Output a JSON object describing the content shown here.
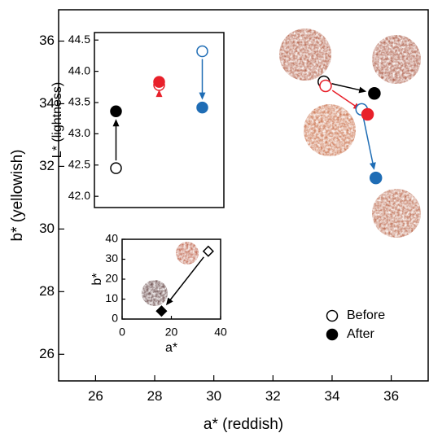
{
  "chart_data": [
    {
      "type": "scatter",
      "xlabel": "a* (reddish)",
      "ylabel": "b* (yellowish)",
      "xlim": [
        24.75,
        37.25
      ],
      "ylim": [
        25.15,
        37.0
      ],
      "xticks": [
        26,
        28,
        30,
        32,
        34,
        36
      ],
      "yticks": [
        26,
        28,
        30,
        32,
        34,
        36
      ],
      "marker": "circle",
      "arrows": true,
      "legend": "lower right",
      "series": [
        {
          "name": "Before",
          "color": "#000000",
          "filled": false,
          "point_colors": [
            "#000000",
            "#e8202a",
            "#1f6db5"
          ],
          "x": [
            33.72,
            33.78,
            35.0
          ],
          "values": [
            34.7,
            34.57,
            33.82
          ]
        },
        {
          "name": "After",
          "color": "#000000",
          "filled": true,
          "point_colors": [
            "#000000",
            "#e8202a",
            "#1f6db5"
          ],
          "x": [
            35.43,
            35.2,
            35.48
          ],
          "values": [
            34.33,
            33.66,
            31.63
          ]
        }
      ]
    },
    {
      "type": "dot",
      "ylabel": "L* (lightness)",
      "ylim": [
        41.82,
        44.62
      ],
      "yticks": [
        {
          "value": 42.0,
          "label": "42.0"
        },
        42.5,
        {
          "value": 43.0,
          "label": "43.0"
        },
        43.5,
        {
          "value": 44.0,
          "label": "44.0"
        },
        44.5
      ],
      "categories": [
        null,
        null,
        null
      ],
      "marker": "circle",
      "arrows": true,
      "series": [
        {
          "name": "Before",
          "filled": false,
          "point_colors": [
            "#000000",
            "#e8202a",
            "#1f6db5"
          ],
          "values": [
            42.45,
            43.78,
            44.32
          ]
        },
        {
          "name": "After",
          "filled": true,
          "point_colors": [
            "#000000",
            "#e8202a",
            "#1f6db5"
          ],
          "values": [
            43.36,
            43.83,
            43.42
          ]
        }
      ]
    },
    {
      "type": "scatter",
      "xlabel": "a*",
      "ylabel": "b*",
      "xlim": [
        0,
        40
      ],
      "ylim": [
        0,
        40
      ],
      "xticks": [
        0,
        20,
        40
      ],
      "yticks": [
        0,
        10,
        20,
        30,
        40
      ],
      "marker": "diamond",
      "arrows": true,
      "series": [
        {
          "name": "Before",
          "filled": false,
          "point_colors": [
            "#000000"
          ],
          "x": [
            35
          ],
          "values": [
            34
          ]
        },
        {
          "name": "After",
          "filled": true,
          "point_colors": [
            "#000000"
          ],
          "x": [
            16
          ],
          "values": [
            4
          ]
        }
      ]
    }
  ]
}
